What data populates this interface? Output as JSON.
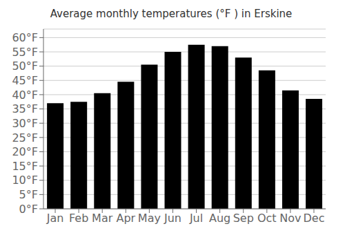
{
  "chart_data": {
    "type": "bar",
    "title": "Average monthly temperatures (°F ) in Erskine",
    "categories": [
      "Jan",
      "Feb",
      "Mar",
      "Apr",
      "May",
      "Jun",
      "Jul",
      "Aug",
      "Sep",
      "Oct",
      "Nov",
      "Dec"
    ],
    "values": [
      37.0,
      37.5,
      40.5,
      44.5,
      50.5,
      55.0,
      57.5,
      57.0,
      53.0,
      48.5,
      41.5,
      38.5
    ],
    "ylim": [
      0,
      63
    ],
    "yticks": [
      {
        "value": 0,
        "label": "0°F"
      },
      {
        "value": 5,
        "label": "5°F"
      },
      {
        "value": 10,
        "label": "10°F"
      },
      {
        "value": 15,
        "label": "15°F"
      },
      {
        "value": 20,
        "label": "20°F"
      },
      {
        "value": 25,
        "label": "25°F"
      },
      {
        "value": 30,
        "label": "30°F"
      },
      {
        "value": 35,
        "label": "35°F"
      },
      {
        "value": 40,
        "label": "40°F"
      },
      {
        "value": 45,
        "label": "45°F"
      },
      {
        "value": 50,
        "label": "50°F"
      },
      {
        "value": 55,
        "label": "55°F"
      },
      {
        "value": 60,
        "label": "60°F"
      }
    ],
    "grid": true
  }
}
